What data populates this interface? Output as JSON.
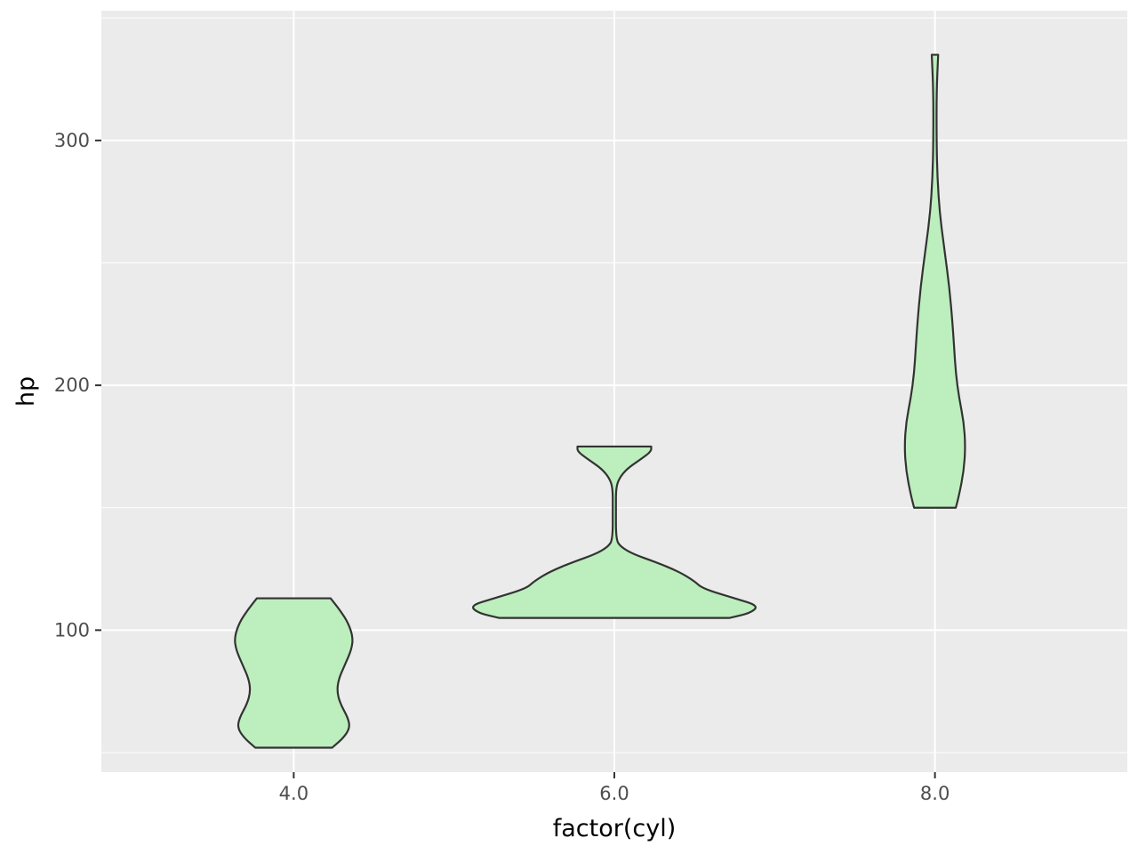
{
  "chart_data": {
    "type": "violin",
    "xlabel": "factor(cyl)",
    "ylabel": "hp",
    "categories": [
      "4.0",
      "6.0",
      "8.0"
    ],
    "x_values": [
      4,
      6,
      8
    ],
    "xlim": [
      2.8,
      9.2
    ],
    "ylim": [
      42,
      353
    ],
    "y_ticks": [
      100,
      200,
      300
    ],
    "y_tick_labels": [
      "100",
      "200",
      "300"
    ],
    "x_tick_labels": [
      "4.0",
      "6.0",
      "8.0"
    ],
    "grid": true,
    "legend": "none",
    "violins": [
      {
        "category": "4.0",
        "min": 52,
        "max": 113,
        "half_widths": [
          [
            52,
            0.24
          ],
          [
            56,
            0.31
          ],
          [
            60,
            0.35
          ],
          [
            64,
            0.34
          ],
          [
            70,
            0.29
          ],
          [
            75,
            0.27
          ],
          [
            80,
            0.28
          ],
          [
            86,
            0.32
          ],
          [
            92,
            0.36
          ],
          [
            97,
            0.37
          ],
          [
            103,
            0.34
          ],
          [
            108,
            0.29
          ],
          [
            113,
            0.23
          ]
        ]
      },
      {
        "category": "6.0",
        "min": 105,
        "max": 175,
        "half_widths": [
          [
            105,
            0.72
          ],
          [
            107,
            0.85
          ],
          [
            110,
            0.9
          ],
          [
            113,
            0.75
          ],
          [
            117,
            0.55
          ],
          [
            120,
            0.5
          ],
          [
            124,
            0.4
          ],
          [
            128,
            0.25
          ],
          [
            131,
            0.12
          ],
          [
            134,
            0.04
          ],
          [
            137,
            0.01
          ],
          [
            150,
            0.01
          ],
          [
            158,
            0.01
          ],
          [
            162,
            0.03
          ],
          [
            166,
            0.08
          ],
          [
            170,
            0.17
          ],
          [
            173,
            0.23
          ],
          [
            175,
            0.23
          ]
        ]
      },
      {
        "category": "8.0",
        "min": 150,
        "max": 335,
        "half_widths": [
          [
            150,
            0.13
          ],
          [
            155,
            0.15
          ],
          [
            165,
            0.18
          ],
          [
            175,
            0.19
          ],
          [
            185,
            0.18
          ],
          [
            195,
            0.15
          ],
          [
            205,
            0.13
          ],
          [
            215,
            0.12
          ],
          [
            225,
            0.11
          ],
          [
            240,
            0.09
          ],
          [
            255,
            0.06
          ],
          [
            270,
            0.03
          ],
          [
            285,
            0.015
          ],
          [
            300,
            0.01
          ],
          [
            320,
            0.01
          ],
          [
            335,
            0.02
          ]
        ]
      }
    ],
    "colors": {
      "panel_background": "#ebebeb",
      "grid_major": "#ffffff",
      "violin_fill": "#bdeebd",
      "violin_outline": "#333333"
    }
  }
}
